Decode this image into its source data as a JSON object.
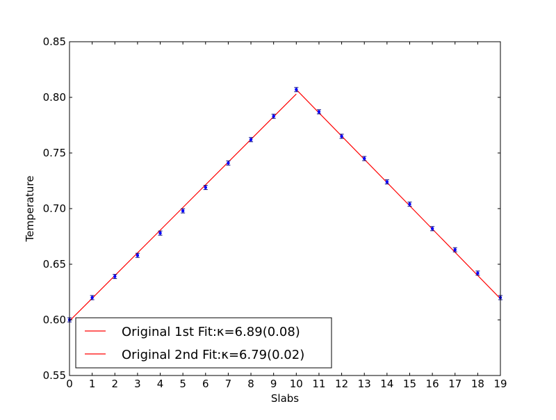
{
  "chart_data": {
    "type": "line",
    "xlabel": "Slabs",
    "ylabel": "Temperature",
    "xlim": [
      0,
      19
    ],
    "ylim": [
      0.55,
      0.85
    ],
    "xticks": [
      "0",
      "1",
      "2",
      "3",
      "4",
      "5",
      "6",
      "7",
      "8",
      "9",
      "10",
      "11",
      "12",
      "13",
      "14",
      "15",
      "16",
      "17",
      "18",
      "19"
    ],
    "yticks": [
      "0.55",
      "0.60",
      "0.65",
      "0.70",
      "0.75",
      "0.80",
      "0.85"
    ],
    "grid": false,
    "legend_position": "lower-left",
    "points": {
      "x": [
        0,
        1,
        2,
        3,
        4,
        5,
        6,
        7,
        8,
        9,
        10,
        11,
        12,
        13,
        14,
        15,
        16,
        17,
        18,
        19
      ],
      "y": [
        0.6,
        0.62,
        0.639,
        0.658,
        0.678,
        0.698,
        0.719,
        0.741,
        0.762,
        0.783,
        0.807,
        0.787,
        0.765,
        0.745,
        0.724,
        0.704,
        0.682,
        0.663,
        0.642,
        0.62
      ],
      "color": "#0000ff"
    },
    "series": [
      {
        "name": "Original 1st Fit:κ=6.89(0.08)",
        "x": [
          0,
          10
        ],
        "y": [
          0.599,
          0.803
        ],
        "color": "#ff0000"
      },
      {
        "name": "Original 2nd Fit:κ=6.79(0.02)",
        "x": [
          10,
          19
        ],
        "y": [
          0.807,
          0.619
        ],
        "color": "#ff0000"
      }
    ]
  }
}
